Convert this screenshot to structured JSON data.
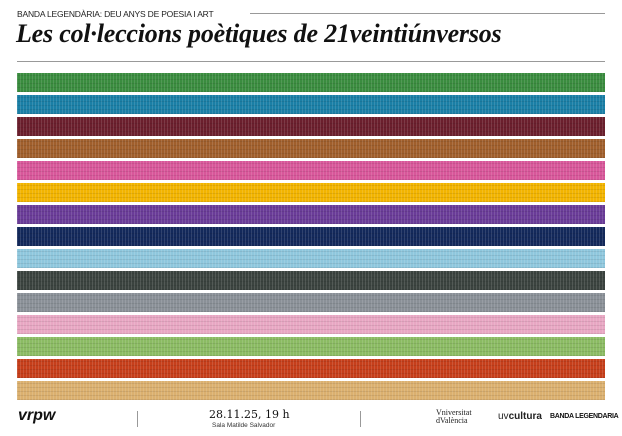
{
  "header": {
    "kicker": "BANDA LEGENDÀRIA: DEU ANYS DE POESIA I ART",
    "title": "Les col·leccions poètiques de 21veintiúnversos"
  },
  "stripes": {
    "colors": [
      "#3a8c3f",
      "#1a7fa6",
      "#6b1f2d",
      "#a05f2c",
      "#d8579a",
      "#f2b400",
      "#6a3c98",
      "#13295b",
      "#8fc7dd",
      "#3b433f",
      "#8a9097",
      "#e8a7c3",
      "#8bbb63",
      "#c63f1b",
      "#dbb06f"
    ]
  },
  "footer": {
    "logo_left": "vrpw",
    "date": "28.11.25, 19 h",
    "venue": "Sala Matilde Salvador",
    "uv_line1": "Vniversitat",
    "uv_line2": "dValència",
    "uvcultura_prefix": "uv",
    "uvcultura_main": "cultura",
    "banda": "BANDA LEGENDARIA"
  }
}
